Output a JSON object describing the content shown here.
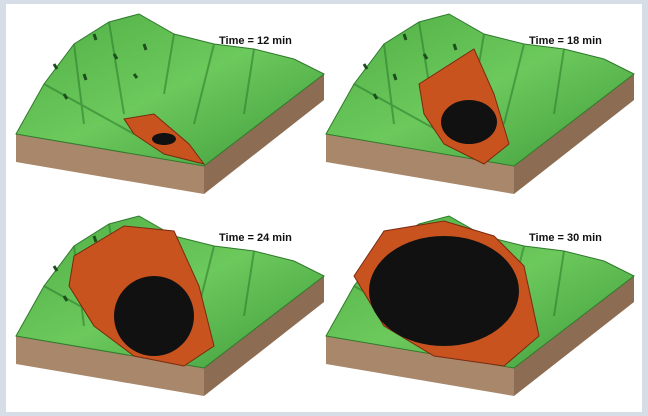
{
  "panels": [
    {
      "label": "Time = 12 min"
    },
    {
      "label": "Time = 18 min"
    },
    {
      "label": "Time = 24 min"
    },
    {
      "label": "Time = 30 min"
    }
  ]
}
